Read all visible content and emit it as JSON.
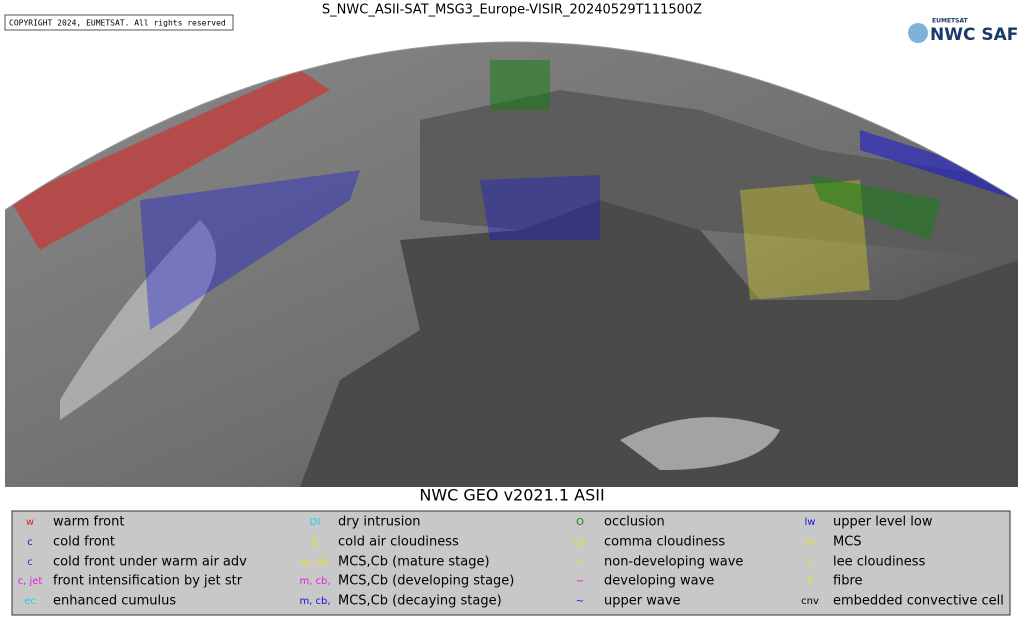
{
  "header": {
    "title": "S_NWC_ASII-SAT_MSG3_Europe-VISIR_20240529T111500Z",
    "copyright": "COPYRIGHT 2024, EUMETSAT. All rights reserved",
    "logo_small": "EUMETSAT",
    "logo_main": "NWC SAF"
  },
  "map": {
    "subtitle": "NWC GEO v2021.1 ASII"
  },
  "legend": {
    "items": [
      {
        "symbol": "w",
        "color": "#e02020",
        "label": "warm front"
      },
      {
        "symbol": "c",
        "color": "#1010e0",
        "label": "cold front"
      },
      {
        "symbol": "c",
        "color": "#7020a0",
        "label": "cold front under warm air adv"
      },
      {
        "symbol": "c, jet",
        "color": "#e020e0",
        "label": "front intensification by jet str"
      },
      {
        "symbol": "ec",
        "color": "#20d0e0",
        "label": "enhanced cumulus"
      },
      {
        "symbol": "DI",
        "color": "#20d0e0",
        "label": "dry intrusion"
      },
      {
        "symbol": "Z",
        "color": "#e8e020",
        "label": "cold air cloudiness"
      },
      {
        "symbol": "m, cb,",
        "color": "#e8e020",
        "label": "MCS,Cb (mature stage)"
      },
      {
        "symbol": "m, cb,",
        "color": "#e020e0",
        "label": "MCS,Cb (developing stage)"
      },
      {
        "symbol": "m, cb,",
        "color": "#1010e0",
        "label": "MCS,Cb (decaying stage)"
      },
      {
        "symbol": "O",
        "color": "#108010",
        "label": "occlusion"
      },
      {
        "symbol": "co",
        "color": "#e8e020",
        "label": "comma cloudiness"
      },
      {
        "symbol": "~",
        "color": "#e8e020",
        "label": "non-developing wave"
      },
      {
        "symbol": "~",
        "color": "#e020e0",
        "label": "developing wave"
      },
      {
        "symbol": "~",
        "color": "#1010e0",
        "label": "upper wave"
      },
      {
        "symbol": "lw",
        "color": "#1010e0",
        "label": "upper level low"
      },
      {
        "symbol": "m",
        "color": "#e8e020",
        "label": "MCS"
      },
      {
        "symbol": "L",
        "color": "#e8e020",
        "label": "lee cloudiness"
      },
      {
        "symbol": "F",
        "color": "#e8e020",
        "label": "fibre"
      },
      {
        "symbol": "cnv",
        "color": "#000000",
        "label": "embedded convective cell"
      }
    ]
  }
}
